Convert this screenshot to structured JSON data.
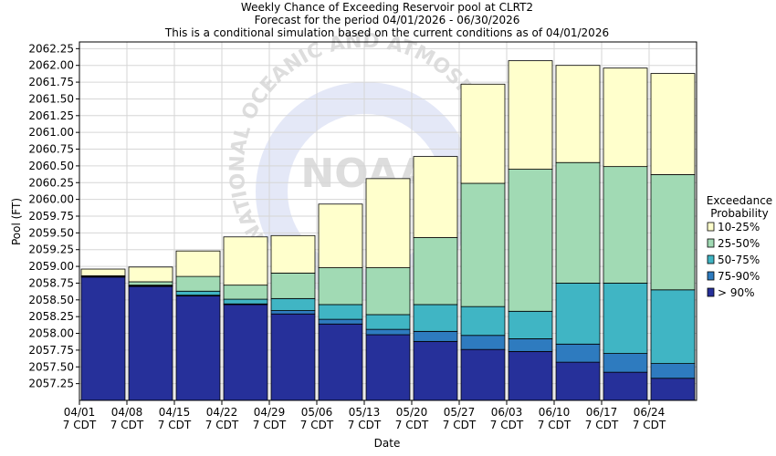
{
  "chart_data": {
    "type": "bar",
    "stacked": true,
    "title_lines": [
      "Weekly Chance of Exceeding Reservoir pool at CLRT2",
      "Forecast for the period 04/01/2026 - 06/30/2026",
      "This is a conditional simulation based on the current conditions as of 04/01/2026"
    ],
    "xlabel": "Date",
    "ylabel": "Pool (FT)",
    "ylim": [
      2057.0,
      2062.35
    ],
    "yticks": [
      "2057.25",
      "2057.50",
      "2057.75",
      "2058.00",
      "2058.25",
      "2058.50",
      "2058.75",
      "2059.00",
      "2059.25",
      "2059.50",
      "2059.75",
      "2060.00",
      "2060.25",
      "2060.50",
      "2060.75",
      "2061.00",
      "2061.25",
      "2061.50",
      "2061.75",
      "2062.00",
      "2062.25"
    ],
    "categories": [
      {
        "date": "04/01",
        "tz": "7 CDT"
      },
      {
        "date": "04/08",
        "tz": "7 CDT"
      },
      {
        "date": "04/15",
        "tz": "7 CDT"
      },
      {
        "date": "04/22",
        "tz": "7 CDT"
      },
      {
        "date": "04/29",
        "tz": "7 CDT"
      },
      {
        "date": "05/06",
        "tz": "7 CDT"
      },
      {
        "date": "05/13",
        "tz": "7 CDT"
      },
      {
        "date": "05/20",
        "tz": "7 CDT"
      },
      {
        "date": "05/27",
        "tz": "7 CDT"
      },
      {
        "date": "06/03",
        "tz": "7 CDT"
      },
      {
        "date": "06/10",
        "tz": "7 CDT"
      },
      {
        "date": "06/17",
        "tz": "7 CDT"
      },
      {
        "date": "06/24",
        "tz": "7 CDT"
      }
    ],
    "legend": {
      "title_lines": [
        "Exceedance",
        "Probability"
      ],
      "position": "right"
    },
    "series": [
      {
        "name": "> 90%",
        "color": "#26309a",
        "tops": [
          2058.84,
          2058.7,
          2058.56,
          2058.43,
          2058.29,
          2058.14,
          2057.98,
          2057.88,
          2057.76,
          2057.73,
          2057.57,
          2057.42,
          2057.33
        ]
      },
      {
        "name": "75-90%",
        "color": "#2e7bbf",
        "tops": [
          2058.84,
          2058.71,
          2058.57,
          2058.44,
          2058.34,
          2058.21,
          2058.06,
          2058.03,
          2057.97,
          2057.92,
          2057.84,
          2057.7,
          2057.55
        ]
      },
      {
        "name": "50-75%",
        "color": "#40b5c4",
        "tops": [
          2058.85,
          2058.72,
          2058.63,
          2058.51,
          2058.52,
          2058.43,
          2058.28,
          2058.43,
          2058.4,
          2058.33,
          2058.75,
          2058.75,
          2058.65
        ]
      },
      {
        "name": "25-50%",
        "color": "#a1dab4",
        "tops": [
          2058.86,
          2058.77,
          2058.85,
          2058.72,
          2058.9,
          2058.98,
          2058.98,
          2059.43,
          2060.24,
          2060.45,
          2060.55,
          2060.49,
          2060.37
        ]
      },
      {
        "name": "10-25%",
        "color": "#ffffcc",
        "tops": [
          2058.96,
          2058.99,
          2059.23,
          2059.44,
          2059.46,
          2059.93,
          2060.31,
          2060.64,
          2061.72,
          2062.07,
          2062.0,
          2061.96,
          2061.88
        ]
      }
    ],
    "legend_order": [
      "10-25%",
      "25-50%",
      "50-75%",
      "75-90%",
      "> 90%"
    ],
    "grid": true,
    "watermark": {
      "text": "NATIONAL OCEANIC AND ATMOSPHERIC",
      "logo": "NOAA"
    }
  }
}
